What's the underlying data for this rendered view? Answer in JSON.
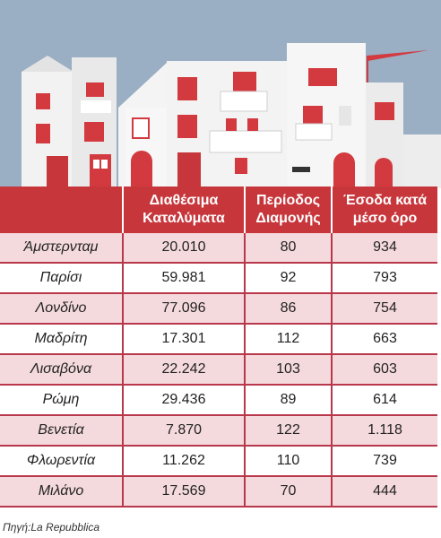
{
  "colors": {
    "header": "#c7363b",
    "row_alt": "#f5dadd",
    "sky": "#9aaec4",
    "accent": "#d23a3f"
  },
  "chart_data": {
    "type": "table",
    "columns": [
      "",
      "Διαθέσιμα Καταλύματα",
      "Περίοδος Διαμονής",
      "Έσοδα κατά μέσο όρο"
    ],
    "header_lines": [
      [
        "",
        ""
      ],
      [
        "Διαθέσιμα",
        "Καταλύματα"
      ],
      [
        "Περίοδος",
        "Διαμονής"
      ],
      [
        "Έσοδα κατά",
        "μέσο όρο"
      ]
    ],
    "rows": [
      [
        "Άμστερνταμ",
        "20.010",
        "80",
        "934"
      ],
      [
        "Παρίσι",
        "59.981",
        "92",
        "793"
      ],
      [
        "Λονδίνο",
        "77.096",
        "86",
        "754"
      ],
      [
        "Μαδρίτη",
        "17.301",
        "112",
        "663"
      ],
      [
        "Λισαβόνα",
        "22.242",
        "103",
        "603"
      ],
      [
        "Ρώμη",
        "29.436",
        "89",
        "614"
      ],
      [
        "Βενετία",
        "7.870",
        "122",
        "1.118"
      ],
      [
        "Φλωρεντία",
        "11.262",
        "110",
        "739"
      ],
      [
        "Μιλάνο",
        "17.569",
        "70",
        "444"
      ]
    ]
  },
  "source": "Πηγή:La Repubblica"
}
